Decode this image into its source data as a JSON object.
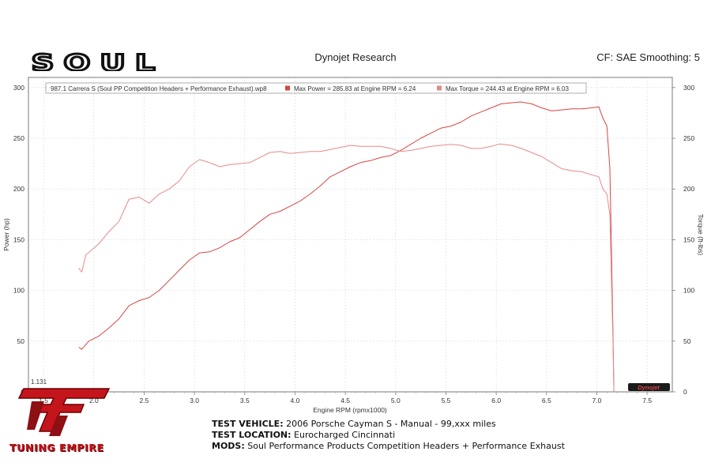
{
  "header": {
    "brand": "SOUL",
    "source": "Dynojet Research",
    "cf": "CF: SAE Smoothing: 5"
  },
  "footer": {
    "vehicle_label": "TEST VEHICLE:",
    "vehicle": "2006 Porsche Cayman S - Manual - 99,xxx miles",
    "location_label": "TEST LOCATION:",
    "location": "Eurocharged Cincinnati",
    "mods_label": "MODS:",
    "mods": "Soul Performance Products Competition Headers + Performance Exhaust",
    "emblem_text": "TUNING EMPIRE",
    "dynojet_mark": "Dynojet"
  },
  "colors": {
    "power": "#d64545",
    "torque": "#e58a8a",
    "grid": "#cfcfcf",
    "emblem_red": "#c4151c"
  },
  "chart_data": {
    "type": "line",
    "xlabel": "Engine RPM (rpmx1000)",
    "ylabel": "Power (hp)",
    "ylabel_right": "Torque (ft-lbs)",
    "xlim": [
      1.35,
      7.75
    ],
    "ylim": [
      0,
      310
    ],
    "x_ticks": [
      "1.5",
      "2.0",
      "2.5",
      "3.0",
      "3.5",
      "4.0",
      "4.5",
      "5.0",
      "5.5",
      "6.0",
      "6.5",
      "7.0",
      "7.5"
    ],
    "y_ticks": [
      "0",
      "50",
      "100",
      "150",
      "200",
      "250",
      "300"
    ],
    "corner_value": "1.131",
    "grid": true,
    "legend_position": "top",
    "legend": [
      {
        "text": "987.1 Carrera S (Soul PP Competition Headers + Performance Exhaust).wp8"
      },
      {
        "text": "Max Power = 285.83 at Engine RPM = 6.24"
      },
      {
        "text": "Max Torque = 244.43 at Engine RPM = 6.03"
      }
    ],
    "series": [
      {
        "key": "power",
        "x": [
          1.85,
          1.88,
          1.95,
          2.05,
          2.15,
          2.25,
          2.35,
          2.45,
          2.55,
          2.65,
          2.75,
          2.85,
          2.95,
          3.05,
          3.15,
          3.25,
          3.35,
          3.45,
          3.55,
          3.65,
          3.75,
          3.85,
          3.95,
          4.05,
          4.15,
          4.25,
          4.35,
          4.45,
          4.55,
          4.65,
          4.75,
          4.85,
          4.95,
          5.05,
          5.15,
          5.25,
          5.35,
          5.45,
          5.55,
          5.65,
          5.75,
          5.85,
          5.95,
          6.05,
          6.15,
          6.24,
          6.35,
          6.45,
          6.55,
          6.65,
          6.75,
          6.85,
          6.95,
          7.02,
          7.06,
          7.1,
          7.13,
          7.16,
          7.17
        ],
        "values": [
          44,
          42,
          50,
          55,
          63,
          72,
          85,
          90,
          93,
          100,
          110,
          120,
          130,
          137,
          138,
          142,
          148,
          152,
          160,
          168,
          175,
          178,
          183,
          188,
          195,
          203,
          212,
          217,
          222,
          226,
          228,
          231,
          233,
          238,
          244,
          250,
          255,
          260,
          262,
          266,
          272,
          276,
          280,
          284,
          285,
          285.83,
          284,
          280,
          277,
          278,
          279,
          279,
          280,
          281,
          270,
          262,
          220,
          60,
          0
        ]
      },
      {
        "key": "torque",
        "x": [
          1.85,
          1.88,
          1.92,
          1.98,
          2.05,
          2.15,
          2.25,
          2.35,
          2.45,
          2.55,
          2.65,
          2.75,
          2.85,
          2.95,
          3.05,
          3.15,
          3.25,
          3.35,
          3.45,
          3.55,
          3.65,
          3.75,
          3.85,
          3.95,
          4.05,
          4.15,
          4.25,
          4.35,
          4.45,
          4.55,
          4.65,
          4.75,
          4.85,
          4.95,
          5.05,
          5.15,
          5.25,
          5.35,
          5.45,
          5.55,
          5.65,
          5.75,
          5.85,
          5.95,
          6.03,
          6.15,
          6.25,
          6.35,
          6.45,
          6.55,
          6.65,
          6.75,
          6.85,
          6.95,
          7.02,
          7.06,
          7.1,
          7.13,
          7.16,
          7.17
        ],
        "values": [
          122,
          118,
          135,
          140,
          146,
          158,
          168,
          190,
          192,
          186,
          195,
          200,
          208,
          222,
          229,
          226,
          222,
          224,
          225,
          226,
          231,
          236,
          237,
          235,
          236,
          237,
          237,
          239,
          241,
          243,
          242,
          242,
          242,
          240,
          237,
          238,
          240,
          242,
          243,
          244,
          243,
          240,
          240,
          242,
          244.43,
          243,
          240,
          236,
          232,
          226,
          220,
          218,
          217,
          214,
          212,
          200,
          195,
          175,
          50,
          0
        ]
      }
    ]
  }
}
